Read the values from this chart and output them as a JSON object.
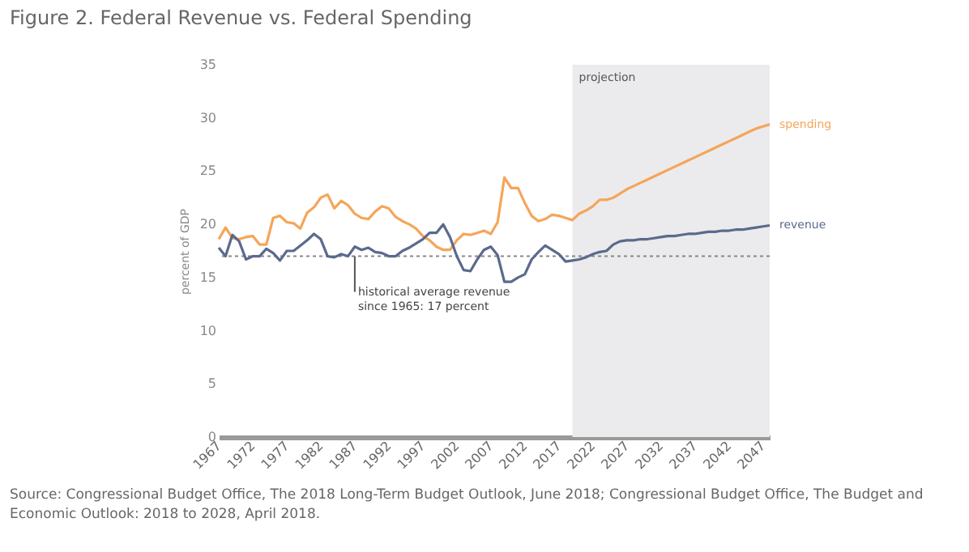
{
  "chart_data": {
    "type": "line",
    "title": "Figure 2. Federal Revenue vs. Federal Spending",
    "ylabel": "percent of GDP",
    "x": [
      1967,
      1968,
      1969,
      1970,
      1971,
      1972,
      1973,
      1974,
      1975,
      1976,
      1977,
      1978,
      1979,
      1980,
      1981,
      1982,
      1983,
      1984,
      1985,
      1986,
      1987,
      1988,
      1989,
      1990,
      1991,
      1992,
      1993,
      1994,
      1995,
      1996,
      1997,
      1998,
      1999,
      2000,
      2001,
      2002,
      2003,
      2004,
      2005,
      2006,
      2007,
      2008,
      2009,
      2010,
      2011,
      2012,
      2013,
      2014,
      2015,
      2016,
      2017,
      2018,
      2019,
      2020,
      2021,
      2022,
      2023,
      2024,
      2025,
      2026,
      2027,
      2028,
      2029,
      2030,
      2031,
      2032,
      2033,
      2034,
      2035,
      2036,
      2037,
      2038,
      2039,
      2040,
      2041,
      2042,
      2043,
      2044,
      2045,
      2046,
      2047,
      2048
    ],
    "series": [
      {
        "name": "spending",
        "color": "#f5a55a",
        "values": [
          18.6,
          19.7,
          18.7,
          18.6,
          18.8,
          18.9,
          18.1,
          18.1,
          20.6,
          20.8,
          20.2,
          20.1,
          19.6,
          21.1,
          21.6,
          22.5,
          22.8,
          21.5,
          22.2,
          21.8,
          21.0,
          20.6,
          20.5,
          21.2,
          21.7,
          21.5,
          20.7,
          20.3,
          20.0,
          19.6,
          18.9,
          18.5,
          17.9,
          17.6,
          17.6,
          18.5,
          19.1,
          19.0,
          19.2,
          19.4,
          19.1,
          20.2,
          24.4,
          23.4,
          23.4,
          22.0,
          20.8,
          20.3,
          20.5,
          20.9,
          20.8,
          20.6,
          20.4,
          21.0,
          21.3,
          21.7,
          22.3,
          22.3,
          22.5,
          22.9,
          23.3,
          23.6,
          23.9,
          24.2,
          24.5,
          24.8,
          25.1,
          25.4,
          25.7,
          26.0,
          26.3,
          26.6,
          26.9,
          27.2,
          27.5,
          27.8,
          28.1,
          28.4,
          28.7,
          29.0,
          29.2,
          29.4
        ]
      },
      {
        "name": "revenue",
        "color": "#5b6a8c",
        "values": [
          17.8,
          17.0,
          19.0,
          18.4,
          16.7,
          17.0,
          17.0,
          17.7,
          17.3,
          16.6,
          17.5,
          17.5,
          18.0,
          18.5,
          19.1,
          18.6,
          17.0,
          16.9,
          17.2,
          17.0,
          17.9,
          17.6,
          17.8,
          17.4,
          17.3,
          17.0,
          17.0,
          17.5,
          17.8,
          18.2,
          18.6,
          19.2,
          19.2,
          20.0,
          18.8,
          17.0,
          15.7,
          15.6,
          16.7,
          17.6,
          17.9,
          17.1,
          14.6,
          14.6,
          15.0,
          15.3,
          16.7,
          17.4,
          18.0,
          17.6,
          17.2,
          16.5,
          16.6,
          16.7,
          16.9,
          17.2,
          17.4,
          17.5,
          18.1,
          18.4,
          18.5,
          18.5,
          18.6,
          18.6,
          18.7,
          18.8,
          18.9,
          18.9,
          19.0,
          19.1,
          19.1,
          19.2,
          19.3,
          19.3,
          19.4,
          19.4,
          19.5,
          19.5,
          19.6,
          19.7,
          19.8,
          19.9
        ]
      }
    ],
    "xlim": [
      1967,
      2048
    ],
    "xticks": [
      1967,
      1972,
      1977,
      1982,
      1987,
      1992,
      1997,
      2002,
      2007,
      2012,
      2017,
      2022,
      2027,
      2032,
      2037,
      2042,
      2047
    ],
    "ylim": [
      0,
      35
    ],
    "yticks": [
      0,
      5,
      10,
      15,
      20,
      25,
      30,
      35
    ],
    "ref_lines": [
      {
        "axis": "y",
        "value": 17,
        "line_style": "dotted",
        "color": "#888888"
      }
    ],
    "bands": [
      {
        "axis": "x",
        "from": 2019,
        "to": 2048,
        "label": "projection",
        "color": "#ebebed"
      }
    ],
    "annotations": [
      {
        "text": "historical average revenue\nsince 1965: 17 percent",
        "x": 1987,
        "y": 17
      },
      "Source: Congressional Budget Office, The 2018 Long-Term Budget Outlook, June 2018; Congressional Budget Office, The Budget and Economic Outlook: 2018 to 2028, April 2018."
    ],
    "grid": false,
    "legend": false,
    "line_style": "solid",
    "marker": "none"
  }
}
